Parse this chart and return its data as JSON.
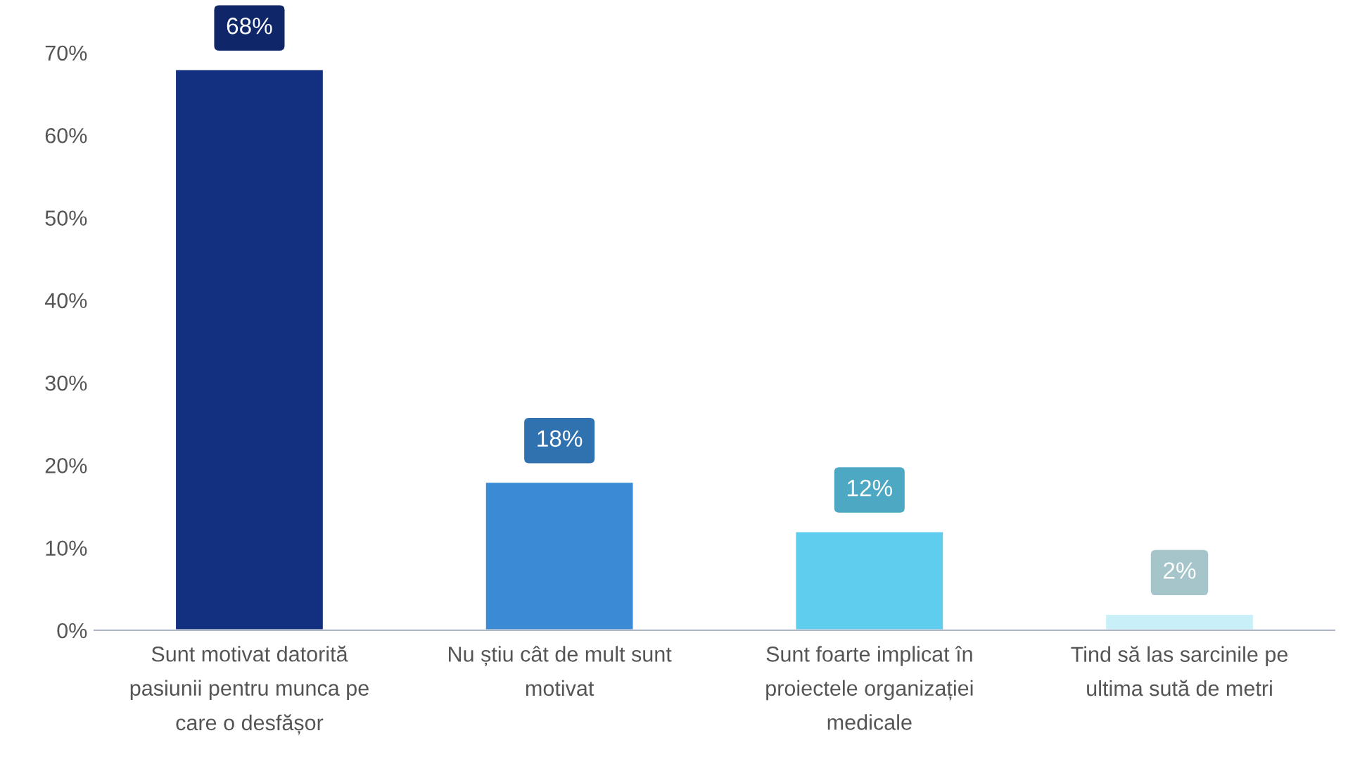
{
  "chart_data": {
    "type": "bar",
    "categories": [
      "Sunt motivat datorită\npasiunii pentru munca pe\ncare o desfășor",
      "Nu știu cât de mult sunt\nmotivat",
      "Sunt foarte implicat în\nproiectele organizației\nmedicale",
      "Tind să las sarcinile pe\nultima sută de metri"
    ],
    "values": [
      68,
      18,
      12,
      2
    ],
    "colors": [
      "#12307f",
      "#3a8ad6",
      "#5ecdee",
      "#c9f0f8"
    ],
    "value_labels": [
      "68%",
      "18%",
      "12%",
      "2%"
    ],
    "ylim": [
      0,
      75
    ],
    "yticks": [
      {
        "value": 0,
        "label": "0%"
      },
      {
        "value": 10,
        "label": "10%"
      },
      {
        "value": 20,
        "label": "20%"
      },
      {
        "value": 30,
        "label": "30%"
      },
      {
        "value": 40,
        "label": "40%"
      },
      {
        "value": 50,
        "label": "50%"
      },
      {
        "value": 60,
        "label": "60%"
      },
      {
        "value": 70,
        "label": "70%"
      }
    ],
    "grid": false,
    "legend": false
  }
}
